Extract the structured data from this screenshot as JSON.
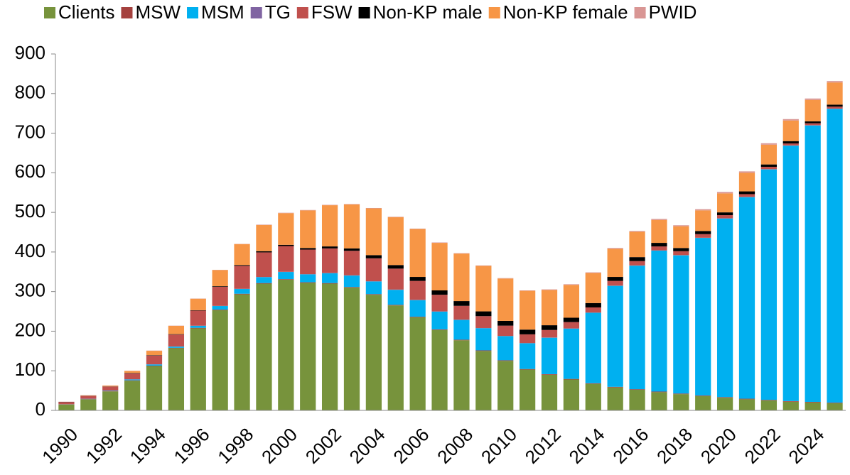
{
  "chart_data": {
    "type": "stacked-bar",
    "categories": [
      "1990",
      null,
      "1992",
      null,
      "1994",
      null,
      "1996",
      null,
      "1998",
      null,
      "2000",
      null,
      "2002",
      null,
      "2004",
      null,
      "2006",
      null,
      "2008",
      null,
      "2010",
      null,
      "2012",
      null,
      "2014",
      null,
      "2016",
      null,
      "2018",
      null,
      "2020",
      null,
      "2022",
      null,
      "2024",
      null
    ],
    "ylim": [
      0,
      900
    ],
    "yticks": [
      0,
      100,
      200,
      300,
      400,
      500,
      600,
      700,
      800,
      900
    ],
    "grid": false,
    "legend": "top",
    "series": [
      {
        "name": "Clients",
        "color": "#77933c",
        "values": [
          15,
          28,
          48,
          75,
          112,
          157,
          207,
          253,
          293,
          320,
          330,
          322,
          320,
          310,
          292,
          265,
          235,
          203,
          177,
          150,
          125,
          103,
          90,
          78,
          67,
          58,
          52,
          46,
          41,
          36,
          32,
          28,
          25,
          22,
          20,
          18
        ]
      },
      {
        "name": "MSW",
        "color": "#a5413e",
        "values": [
          0.5,
          0.5,
          0.5,
          1,
          1,
          1,
          1.5,
          1.5,
          1.5,
          1.5,
          1.5,
          1.5,
          1.5,
          1.5,
          1.5,
          1.5,
          1.5,
          1.5,
          1.5,
          1.5,
          1.5,
          1.5,
          1.5,
          1.5,
          1.5,
          1.5,
          1.5,
          1.5,
          1.5,
          1.5,
          1.5,
          1.5,
          1.5,
          1.5,
          1.5,
          1.5
        ]
      },
      {
        "name": "MSM",
        "color": "#00b0f0",
        "values": [
          0,
          0.5,
          1,
          2,
          3,
          3,
          5,
          9,
          12,
          15,
          18,
          20,
          25,
          29,
          32,
          38,
          42,
          45,
          50,
          56,
          61,
          65,
          92,
          127,
          178,
          255,
          312,
          356,
          349,
          398,
          451,
          509,
          582,
          645,
          698,
          742
        ]
      },
      {
        "name": "TG",
        "color": "#8064a2",
        "values": [
          0.5,
          0.5,
          0.5,
          0.5,
          0.5,
          0.5,
          0.5,
          0.5,
          0.5,
          0.5,
          0.5,
          0.5,
          0.5,
          0.5,
          0.5,
          0.5,
          0.5,
          0.5,
          0.5,
          0.5,
          0.5,
          0.5,
          0.5,
          0.5,
          0.5,
          0.5,
          0.5,
          0.5,
          0.5,
          0.5,
          0.5,
          0.5,
          0.5,
          0.5,
          0.5,
          0.5
        ]
      },
      {
        "name": "FSW",
        "color": "#c0504d",
        "values": [
          5,
          7,
          10,
          15,
          22,
          30,
          38,
          48,
          58,
          62,
          65,
          62,
          62,
          62,
          58,
          53,
          48,
          42,
          35,
          30,
          26,
          22,
          19,
          16,
          13,
          12,
          11,
          10,
          10,
          9,
          8,
          7,
          6,
          5,
          5,
          5
        ]
      },
      {
        "name": "Non-KP male",
        "color": "#000000",
        "values": [
          0.5,
          0.5,
          0.5,
          1,
          1,
          1,
          1,
          1.5,
          2,
          3,
          3,
          4,
          5,
          6,
          8,
          9,
          10,
          11,
          12,
          12,
          12,
          12,
          12,
          11,
          11,
          10,
          10,
          9,
          8,
          8,
          7,
          7,
          6,
          6,
          5,
          5
        ]
      },
      {
        "name": "Non-KP female",
        "color": "#f79646",
        "values": [
          0,
          1,
          2,
          5,
          11,
          21,
          29,
          41,
          53,
          66,
          80,
          95,
          104,
          111,
          118,
          121,
          121,
          120,
          120,
          115,
          107,
          98,
          89,
          83,
          76,
          71,
          64,
          58,
          55,
          52,
          48,
          47,
          50,
          52,
          54,
          56
        ]
      },
      {
        "name": "PWID",
        "color": "#d99694",
        "values": [
          0.5,
          0.5,
          0.5,
          0.5,
          0.5,
          0.5,
          0.5,
          0.5,
          0.5,
          1,
          1,
          1,
          1,
          1,
          1,
          1,
          1,
          1,
          1,
          1,
          1,
          1,
          1.5,
          1.5,
          1.5,
          2,
          2,
          2.5,
          2.5,
          3,
          3.5,
          3.5,
          3.5,
          3.5,
          3.5,
          3.5
        ]
      }
    ]
  }
}
